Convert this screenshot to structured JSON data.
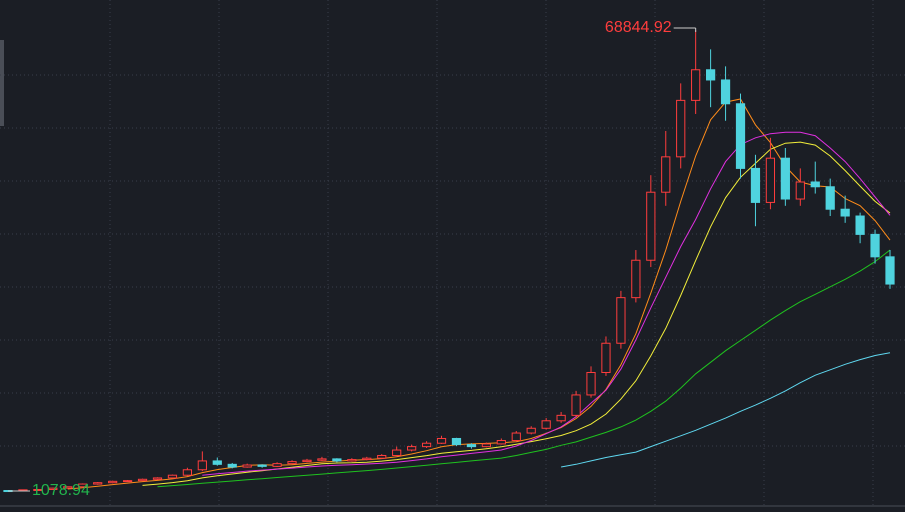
{
  "chart_data": {
    "type": "candlestick",
    "up_color": "#ff3d3d",
    "down_color": "#4fd3de",
    "max_label_color": "#ff3d3d",
    "min_label_color": "#22b44c",
    "open": [
      1150,
      1100,
      1250,
      1300,
      1500,
      1700,
      2100,
      2300,
      2500,
      2600,
      2800,
      3000,
      3400,
      4200,
      5500,
      5000,
      4600,
      4900,
      4700,
      5100,
      5400,
      5600,
      5800,
      5500,
      5700,
      5900,
      6300,
      7100,
      7600,
      8100,
      8800,
      7900,
      7600,
      8000,
      8500,
      9600,
      10300,
      11400,
      12200,
      15200,
      18500,
      22800,
      29500,
      35000,
      45000,
      50200,
      58500,
      63000,
      61500,
      58000,
      48500,
      43500,
      50000,
      44000,
      46500,
      45800,
      42500,
      41500,
      38800,
      35500
    ],
    "high": [
      1200,
      1300,
      1350,
      1550,
      1750,
      2200,
      2400,
      2600,
      2700,
      2900,
      3100,
      3500,
      4500,
      6900,
      6000,
      5200,
      5100,
      5000,
      5300,
      5600,
      5800,
      6100,
      5900,
      5900,
      6100,
      6500,
      7600,
      7900,
      8400,
      9200,
      8900,
      8100,
      8200,
      8800,
      9900,
      10600,
      11800,
      12700,
      15800,
      19400,
      23800,
      30500,
      36500,
      47500,
      54000,
      61000,
      68844.92,
      66000,
      63500,
      59500,
      50500,
      53000,
      51500,
      48500,
      49500,
      47000,
      44500,
      42000,
      39500,
      36500
    ],
    "low": [
      1078.94,
      1090,
      1200,
      1280,
      1450,
      1650,
      2000,
      2200,
      2400,
      2500,
      2700,
      2900,
      3300,
      4000,
      4800,
      4400,
      4500,
      4500,
      4600,
      5000,
      5300,
      5500,
      5300,
      5400,
      5600,
      5800,
      6200,
      6900,
      7400,
      8000,
      7700,
      7300,
      7500,
      7900,
      8400,
      9400,
      10100,
      11100,
      12000,
      14800,
      18000,
      22000,
      28800,
      34000,
      43000,
      48500,
      56500,
      57500,
      55500,
      47000,
      40000,
      42500,
      43000,
      43000,
      44800,
      41500,
      40500,
      37500,
      34500,
      30800
    ],
    "close": [
      1100,
      1250,
      1300,
      1500,
      1700,
      2100,
      2300,
      2500,
      2600,
      2800,
      3000,
      3400,
      4200,
      5500,
      5000,
      4600,
      4900,
      4700,
      5100,
      5400,
      5600,
      5800,
      5500,
      5700,
      5900,
      6300,
      7100,
      7600,
      8100,
      8800,
      7900,
      7600,
      8000,
      8500,
      9600,
      10300,
      11400,
      12200,
      15200,
      18500,
      22800,
      29500,
      35000,
      45000,
      50200,
      58500,
      63000,
      61500,
      58000,
      48500,
      43500,
      50000,
      44000,
      46500,
      45800,
      42500,
      41500,
      38800,
      35500,
      31500
    ],
    "series": [
      {
        "color": "#ff8c1a",
        "values": [
          null,
          null,
          null,
          null,
          1370,
          1570,
          1780,
          2020,
          2240,
          2460,
          2640,
          2860,
          3200,
          3780,
          4220,
          4540,
          4840,
          4940,
          4860,
          4940,
          5140,
          5320,
          5480,
          5600,
          5700,
          5840,
          6100,
          6520,
          7000,
          7580,
          7900,
          8000,
          8080,
          8160,
          8320,
          8800,
          9560,
          10400,
          11740,
          13520,
          16020,
          19640,
          24200,
          30160,
          36500,
          43640,
          50340,
          55640,
          58240,
          58700,
          54900,
          52300,
          48800,
          46500,
          45960,
          45760,
          44060,
          43020,
          40820,
          37960
        ]
      },
      {
        "color": "#f2ee3a",
        "values": [
          null,
          null,
          null,
          null,
          null,
          null,
          null,
          null,
          null,
          1905,
          2095,
          2310,
          2600,
          3000,
          3330,
          3580,
          3840,
          4060,
          4310,
          4570,
          4830,
          5070,
          5200,
          5220,
          5310,
          5480,
          5700,
          5990,
          6290,
          6630,
          6860,
          7040,
          7290,
          7570,
          7940,
          8340,
          8770,
          9230,
          9940,
          10910,
          12400,
          14590,
          17290,
          20940,
          25000,
          29820,
          34980,
          39910,
          44190,
          47190,
          49260,
          51310,
          52210,
          52360,
          51920,
          50320,
          48170,
          45900,
          43650,
          41950
        ]
      },
      {
        "color": "#e030e0",
        "values": [
          null,
          null,
          null,
          null,
          null,
          null,
          null,
          null,
          null,
          null,
          null,
          null,
          null,
          3400,
          3600,
          3800,
          4000,
          4150,
          4300,
          4450,
          4600,
          4750,
          4850,
          4950,
          5050,
          5150,
          5300,
          5550,
          5800,
          6100,
          6350,
          6600,
          6850,
          7100,
          7700,
          8500,
          9500,
          10500,
          12000,
          14000,
          15900,
          19000,
          23300,
          28000,
          32500,
          37000,
          41000,
          45500,
          49500,
          52000,
          53000,
          53600,
          53800,
          53800,
          53300,
          51500,
          49500,
          47000,
          44300,
          41600
        ]
      },
      {
        "color": "#1fc21f",
        "values": [
          null,
          null,
          null,
          null,
          null,
          null,
          null,
          null,
          null,
          null,
          1700,
          1870,
          2040,
          2210,
          2380,
          2550,
          2720,
          2890,
          3060,
          3230,
          3400,
          3570,
          3740,
          3910,
          4080,
          4250,
          4460,
          4660,
          4870,
          5080,
          5290,
          5500,
          5710,
          5920,
          6300,
          6750,
          7200,
          7800,
          8300,
          9000,
          9700,
          10500,
          11500,
          12800,
          14300,
          16200,
          18300,
          20000,
          21700,
          23200,
          24700,
          26200,
          27600,
          28900,
          30000,
          31100,
          32200,
          33400,
          34800,
          36500
        ]
      },
      {
        "color": "#5fd8f0",
        "values": [
          null,
          null,
          null,
          null,
          null,
          null,
          null,
          null,
          null,
          null,
          null,
          null,
          null,
          null,
          null,
          null,
          null,
          null,
          null,
          null,
          null,
          null,
          null,
          null,
          null,
          null,
          null,
          null,
          null,
          null,
          null,
          null,
          null,
          null,
          null,
          null,
          null,
          4600,
          5000,
          5500,
          6000,
          6400,
          6800,
          7600,
          8400,
          9200,
          10000,
          10900,
          11800,
          12800,
          13700,
          14700,
          15800,
          17000,
          18100,
          18900,
          19700,
          20400,
          21000,
          21400
        ]
      }
    ]
  }
}
